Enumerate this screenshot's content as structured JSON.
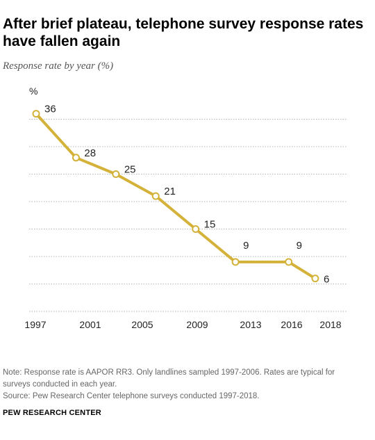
{
  "chart_data": {
    "type": "line",
    "title": "After brief plateau, telephone survey response rates have fallen again",
    "subtitle": "Response rate by year (%)",
    "y_unit_label": "%",
    "x_tick_labels": [
      "1997",
      "2001",
      "2005",
      "2009",
      "2013",
      "2016",
      "2018"
    ],
    "points": [
      {
        "x": 1997,
        "y": 36,
        "label": "36"
      },
      {
        "x": 2000,
        "y": 28,
        "label": "28"
      },
      {
        "x": 2003,
        "y": 25,
        "label": "25"
      },
      {
        "x": 2006,
        "y": 21,
        "label": "21"
      },
      {
        "x": 2009,
        "y": 15,
        "label": "15"
      },
      {
        "x": 2012,
        "y": 9,
        "label": "9"
      },
      {
        "x": 2016,
        "y": 9,
        "label": "9"
      },
      {
        "x": 2018,
        "y": 6,
        "label": "6"
      }
    ],
    "ylim": [
      0,
      40
    ],
    "grid": true,
    "line_color": "#d4b23a",
    "marker_fill": "#ffffff"
  },
  "note": {
    "line1": "Note: Response rate is AAPOR RR3. Only landlines sampled 1997-2006. Rates are typical for",
    "line2": "surveys conducted in each year.",
    "line3": "Source: Pew Research Center telephone surveys conducted 1997-2018."
  },
  "brand": "PEW RESEARCH CENTER"
}
